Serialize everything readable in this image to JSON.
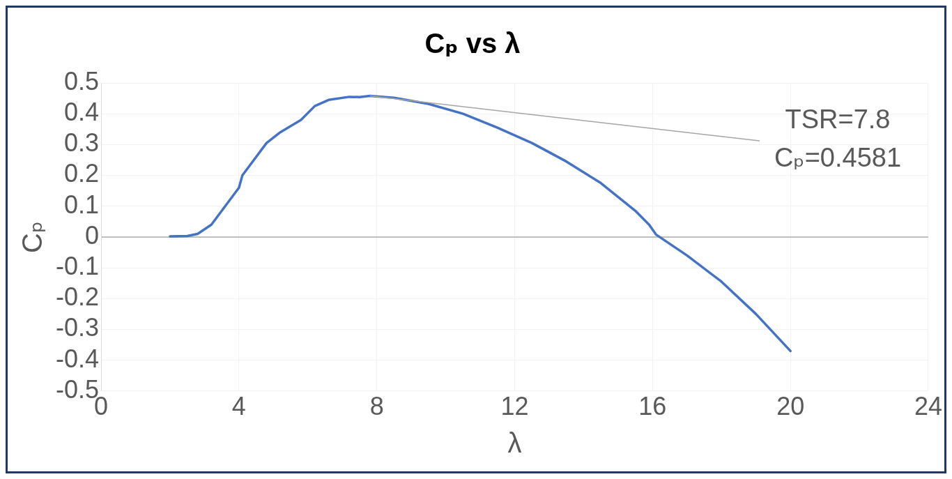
{
  "chart_data": {
    "type": "line",
    "title": "Cₚ vs λ",
    "xlabel": "λ",
    "ylabel": "Cₚ",
    "xlim": [
      0,
      24
    ],
    "xticks": [
      0,
      4,
      8,
      12,
      16,
      20,
      24
    ],
    "ylim": [
      -0.5,
      0.5
    ],
    "yticks": [
      -0.5,
      -0.4,
      -0.3,
      -0.2,
      -0.1,
      0,
      0.1,
      0.2,
      0.3,
      0.4,
      0.5
    ],
    "grid": true,
    "legend": false,
    "marker": "none",
    "line_style": "solid",
    "series": [
      {
        "color": "#4472c4",
        "x": [
          2,
          2.5,
          2.8,
          3.2,
          3.6,
          4,
          4.1,
          4.5,
          4.8,
          5.2,
          5.8,
          6.2,
          6.6,
          7.2,
          7.5,
          7.8,
          8.5,
          9.5,
          10.5,
          11.5,
          12.5,
          13.5,
          14.5,
          15.5,
          15.9,
          16.1,
          17,
          18,
          19,
          20
        ],
        "values": [
          0.002,
          0.003,
          0.01,
          0.04,
          0.1,
          0.16,
          0.2,
          0.26,
          0.305,
          0.34,
          0.38,
          0.425,
          0.445,
          0.455,
          0.454,
          0.458,
          0.452,
          0.432,
          0.4,
          0.355,
          0.305,
          0.245,
          0.175,
          0.085,
          0.04,
          0.008,
          -0.06,
          -0.145,
          -0.25,
          -0.37
        ]
      }
    ],
    "annotations": [
      {
        "text": "TSR=7.8\nCₚ=0.4581",
        "x": 7.8,
        "y": 0.4581
      }
    ]
  }
}
